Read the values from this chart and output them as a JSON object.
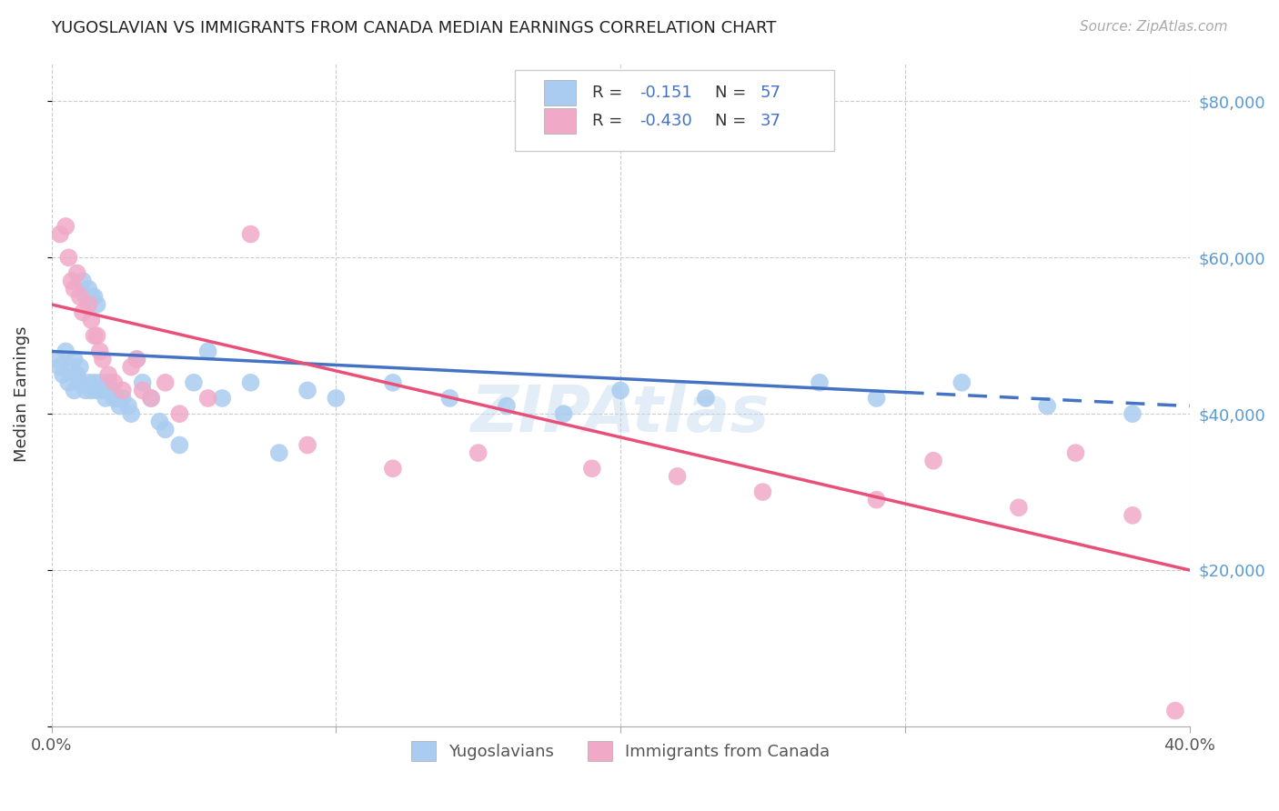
{
  "title": "YUGOSLAVIAN VS IMMIGRANTS FROM CANADA MEDIAN EARNINGS CORRELATION CHART",
  "source": "Source: ZipAtlas.com",
  "ylabel": "Median Earnings",
  "xmin": 0.0,
  "xmax": 0.4,
  "ymin": 0,
  "ymax": 85000,
  "yticks": [
    0,
    20000,
    40000,
    60000,
    80000
  ],
  "ytick_labels": [
    "",
    "$20,000",
    "$40,000",
    "$60,000",
    "$80,000"
  ],
  "xticks": [
    0.0,
    0.1,
    0.2,
    0.3,
    0.4
  ],
  "xtick_labels": [
    "0.0%",
    "",
    "",
    "",
    "40.0%"
  ],
  "blue_color": "#aaccf0",
  "pink_color": "#f0aac8",
  "blue_line_color": "#4472c4",
  "pink_line_color": "#e8507a",
  "watermark": "ZIPAtlas",
  "blue_x": [
    0.002,
    0.003,
    0.004,
    0.005,
    0.006,
    0.007,
    0.008,
    0.008,
    0.009,
    0.01,
    0.01,
    0.011,
    0.012,
    0.012,
    0.013,
    0.013,
    0.014,
    0.014,
    0.015,
    0.015,
    0.016,
    0.016,
    0.017,
    0.018,
    0.019,
    0.02,
    0.021,
    0.022,
    0.023,
    0.024,
    0.025,
    0.027,
    0.028,
    0.03,
    0.032,
    0.035,
    0.038,
    0.04,
    0.045,
    0.05,
    0.055,
    0.06,
    0.07,
    0.08,
    0.09,
    0.1,
    0.12,
    0.14,
    0.16,
    0.18,
    0.2,
    0.23,
    0.27,
    0.29,
    0.32,
    0.35,
    0.38
  ],
  "blue_y": [
    47000,
    46000,
    45000,
    48000,
    44000,
    46000,
    47000,
    43000,
    45000,
    46000,
    44000,
    57000,
    55000,
    43000,
    56000,
    44000,
    55000,
    43000,
    55000,
    44000,
    54000,
    43000,
    44000,
    43000,
    42000,
    44000,
    43000,
    42000,
    42000,
    41000,
    42000,
    41000,
    40000,
    47000,
    44000,
    42000,
    39000,
    38000,
    36000,
    44000,
    48000,
    42000,
    44000,
    35000,
    43000,
    42000,
    44000,
    42000,
    41000,
    40000,
    43000,
    42000,
    44000,
    42000,
    44000,
    41000,
    40000
  ],
  "pink_x": [
    0.003,
    0.005,
    0.006,
    0.007,
    0.008,
    0.009,
    0.01,
    0.011,
    0.013,
    0.014,
    0.015,
    0.016,
    0.017,
    0.018,
    0.02,
    0.022,
    0.025,
    0.028,
    0.03,
    0.032,
    0.035,
    0.04,
    0.045,
    0.055,
    0.07,
    0.09,
    0.12,
    0.15,
    0.19,
    0.22,
    0.25,
    0.29,
    0.31,
    0.34,
    0.36,
    0.38,
    0.395
  ],
  "pink_y": [
    63000,
    64000,
    60000,
    57000,
    56000,
    58000,
    55000,
    53000,
    54000,
    52000,
    50000,
    50000,
    48000,
    47000,
    45000,
    44000,
    43000,
    46000,
    47000,
    43000,
    42000,
    44000,
    40000,
    42000,
    63000,
    36000,
    33000,
    35000,
    33000,
    32000,
    30000,
    29000,
    34000,
    28000,
    35000,
    27000,
    2000
  ],
  "blue_line_y0": 48000,
  "blue_line_y1": 41000,
  "pink_line_y0": 54000,
  "pink_line_y1": 20000,
  "background_color": "#ffffff",
  "grid_color": "#cccccc",
  "right_axis_label_color": "#5b9bd5"
}
